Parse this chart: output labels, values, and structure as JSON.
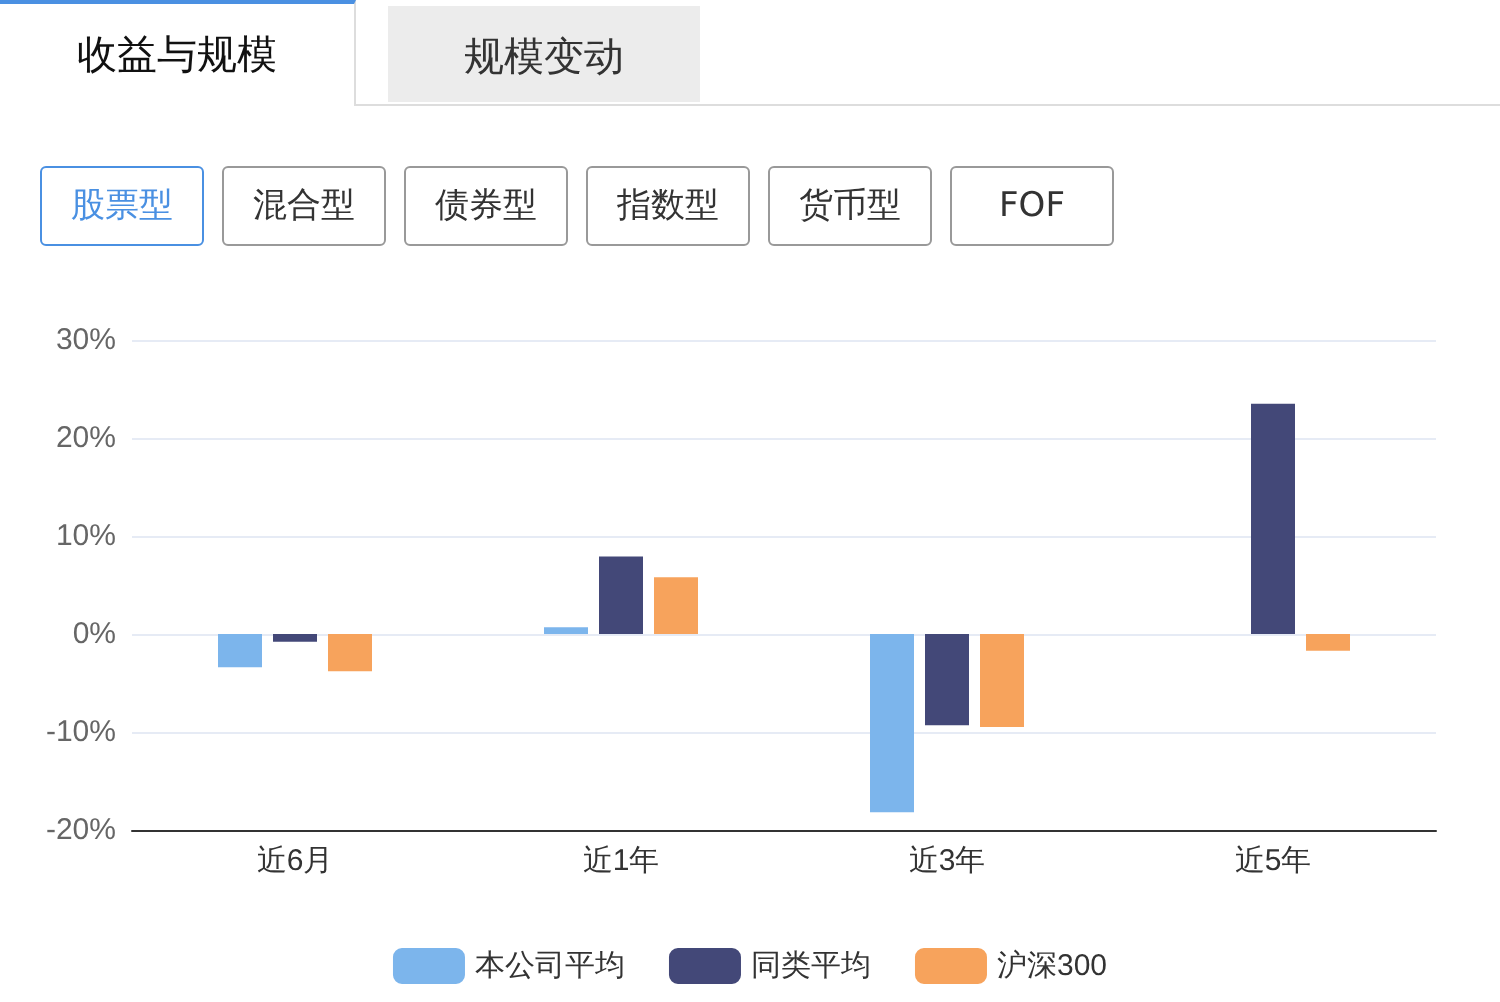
{
  "chart_data": {
    "type": "bar",
    "annotations": [
      "收益与规模",
      "规模变动",
      "股票型",
      "混合型",
      "债券型",
      "指数型",
      "货币型",
      "FOF"
    ],
    "categories": [
      "近6月",
      "近1年",
      "近3年",
      "近5年"
    ],
    "series": [
      {
        "name": "本公司平均",
        "color": "#7cb5ec",
        "values": [
          -3.4,
          0.7,
          -18.2,
          null
        ]
      },
      {
        "name": "同类平均",
        "color": "#434878",
        "values": [
          -0.8,
          7.9,
          -9.3,
          23.5
        ]
      },
      {
        "name": "沪深300",
        "color": "#f7a35c",
        "values": [
          -3.8,
          5.8,
          -9.5,
          -1.7
        ]
      }
    ],
    "ylim": [
      -20,
      30
    ],
    "yticks": [
      {
        "value": -20,
        "label": "-20%"
      },
      {
        "value": -10,
        "label": "-10%"
      },
      {
        "value": 0,
        "label": "0%"
      },
      {
        "value": 10,
        "label": "10%"
      },
      {
        "value": 20,
        "label": "20%"
      },
      {
        "value": 30,
        "label": "30%"
      }
    ],
    "grid": "y",
    "legend": "bottom"
  }
}
